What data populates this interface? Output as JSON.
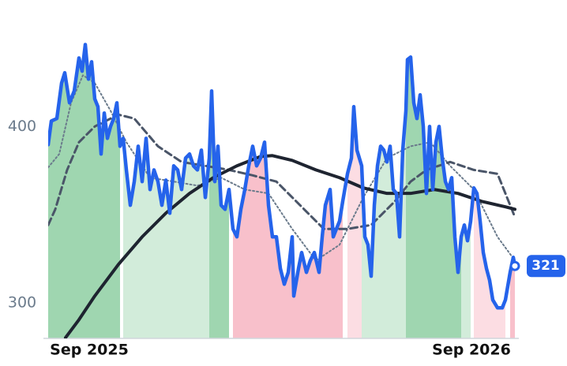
{
  "chart_data": {
    "type": "line",
    "xlim": [
      0,
      596
    ],
    "ylim": [
      280,
      460
    ],
    "xticks": [
      {
        "value": 52,
        "label": "Sep 2025"
      },
      {
        "value": 536,
        "label": "Sep 2026"
      }
    ],
    "yticks": [
      300,
      400
    ],
    "grid": false,
    "bands": [
      {
        "from": 0,
        "to": 92,
        "color": "#9fd6b0"
      },
      {
        "from": 92,
        "to": 204,
        "color": "#d2ecda"
      },
      {
        "from": 204,
        "to": 231,
        "color": "#9fd6b0"
      },
      {
        "from": 231,
        "to": 376,
        "color": "#f8c0cb"
      },
      {
        "from": 376,
        "to": 397,
        "color": "#fcdde3"
      },
      {
        "from": 397,
        "to": 453,
        "color": "#d2ecda"
      },
      {
        "from": 453,
        "to": 523,
        "color": "#9fd6b0"
      },
      {
        "from": 523,
        "to": 536,
        "color": "#d2ecda"
      },
      {
        "from": 536,
        "to": 580,
        "color": "#fcdde3"
      },
      {
        "from": 580,
        "to": 591,
        "color": "#f8c0cb"
      }
    ],
    "series": [
      {
        "style": "dotted",
        "color": "#6b7b8c",
        "width": 2,
        "x": [
          0,
          14,
          29,
          44,
          59,
          79,
          99,
          129,
          159,
          189,
          219,
          249,
          279,
          309,
          339,
          369,
          399,
          429,
          459,
          484,
          509,
          539,
          569,
          591
        ],
        "values": [
          376.8,
          384.4,
          413.4,
          429,
          424.6,
          408.9,
          391.1,
          371,
          368.8,
          366.5,
          371,
          364.3,
          362.1,
          342,
          324.1,
          333,
          359.8,
          382.1,
          388.8,
          391.1,
          377.7,
          364.3,
          337.5,
          324.1
        ]
      },
      {
        "style": "dashed",
        "color": "#4a5568",
        "width": 3,
        "x": [
          0,
          9,
          24,
          39,
          59,
          89,
          109,
          139,
          169,
          199,
          229,
          259,
          289,
          319,
          349,
          379,
          409,
          439,
          459,
          479,
          509,
          539,
          569,
          591
        ],
        "values": [
          344.2,
          353.1,
          375.4,
          391.1,
          400,
          406.7,
          404.5,
          388.8,
          379.9,
          377.7,
          375.4,
          372.3,
          368.8,
          355.4,
          342,
          342,
          344.2,
          357.6,
          368.8,
          375.4,
          379.9,
          375.4,
          373.2,
          348.7
        ]
      },
      {
        "style": "solid",
        "color": "#1e2430",
        "width": 4,
        "x": [
          22,
          39,
          59,
          89,
          119,
          149,
          179,
          209,
          239,
          269,
          284,
          309,
          339,
          369,
          399,
          429,
          459,
          489,
          519,
          549,
          579,
          591
        ],
        "values": [
          280.4,
          290.6,
          304,
          321.9,
          337.5,
          350.9,
          362.1,
          371,
          377.7,
          383,
          383.5,
          380.8,
          375.4,
          371,
          365.2,
          362.1,
          362.1,
          364.3,
          362.1,
          357.6,
          354.5,
          353.1
        ]
      },
      {
        "style": "solid",
        "color": "#2563eb",
        "width": 4.5,
        "fill_bands": true,
        "end_label": true,
        "x": [
          0,
          4,
          11,
          17,
          21,
          27,
          33,
          39,
          43,
          47,
          51,
          55,
          59,
          63,
          67,
          71,
          75,
          79,
          83,
          87,
          91,
          95,
          99,
          104,
          109,
          114,
          119,
          124,
          129,
          134,
          139,
          144,
          149,
          154,
          159,
          164,
          169,
          174,
          179,
          184,
          189,
          194,
          199,
          204,
          207,
          211,
          215,
          219,
          224,
          229,
          234,
          239,
          244,
          249,
          254,
          259,
          264,
          269,
          274,
          279,
          284,
          289,
          294,
          299,
          304,
          309,
          311,
          317,
          321,
          327,
          332,
          337,
          343,
          347,
          351,
          357,
          361,
          365,
          369,
          373,
          379,
          384,
          387,
          391,
          397,
          401,
          405,
          409,
          413,
          417,
          421,
          425,
          429,
          433,
          437,
          441,
          445,
          449,
          453,
          455,
          459,
          463,
          467,
          471,
          475,
          479,
          483,
          487,
          491,
          495,
          499,
          503,
          507,
          511,
          515,
          519,
          523,
          527,
          531,
          535,
          539,
          543,
          547,
          551,
          555,
          559,
          563,
          569,
          575,
          579,
          585,
          589,
          591
        ],
        "values": [
          389.7,
          403.1,
          404.5,
          424.6,
          430.4,
          413.4,
          420.1,
          438.8,
          431.3,
          446.4,
          426.8,
          436.6,
          415.6,
          411.2,
          384.4,
          407.6,
          393.3,
          400,
          404.5,
          413.4,
          388.8,
          393.3,
          375.4,
          355.4,
          368.8,
          388.8,
          368.8,
          393.3,
          364.3,
          375.4,
          368.8,
          355.4,
          369.6,
          350.9,
          377.7,
          375.4,
          364.3,
          382.1,
          384.4,
          377.7,
          375.4,
          386.6,
          359.8,
          382.1,
          420.1,
          368.8,
          388.8,
          355.4,
          353.1,
          364.3,
          342,
          337.5,
          353.1,
          364.3,
          377.7,
          388.8,
          377.7,
          382.1,
          391.1,
          355.4,
          337.5,
          337.5,
          319.6,
          310.7,
          317.4,
          337.5,
          304,
          319.6,
          328.6,
          317.4,
          324.1,
          328.6,
          317.4,
          337.5,
          355.4,
          364.3,
          337.5,
          342,
          346.4,
          357.6,
          373.2,
          382.1,
          411.2,
          386.6,
          377.7,
          337.5,
          333,
          315.2,
          355.4,
          377.7,
          388.8,
          386.6,
          379.9,
          388.8,
          364.3,
          362.1,
          337.5,
          386.6,
          408.9,
          437.9,
          439.3,
          413.4,
          404.5,
          417.9,
          400,
          362.1,
          400,
          364.3,
          391.1,
          400,
          382.1,
          368.8,
          364.3,
          371,
          337.5,
          317.4,
          337.5,
          344.2,
          335.3,
          346.4,
          365.2,
          362.1,
          346.4,
          328.6,
          319.6,
          312.9,
          301.8,
          297.3,
          297.3,
          301.8,
          317.4,
          325.9,
          321
        ]
      }
    ]
  }
}
